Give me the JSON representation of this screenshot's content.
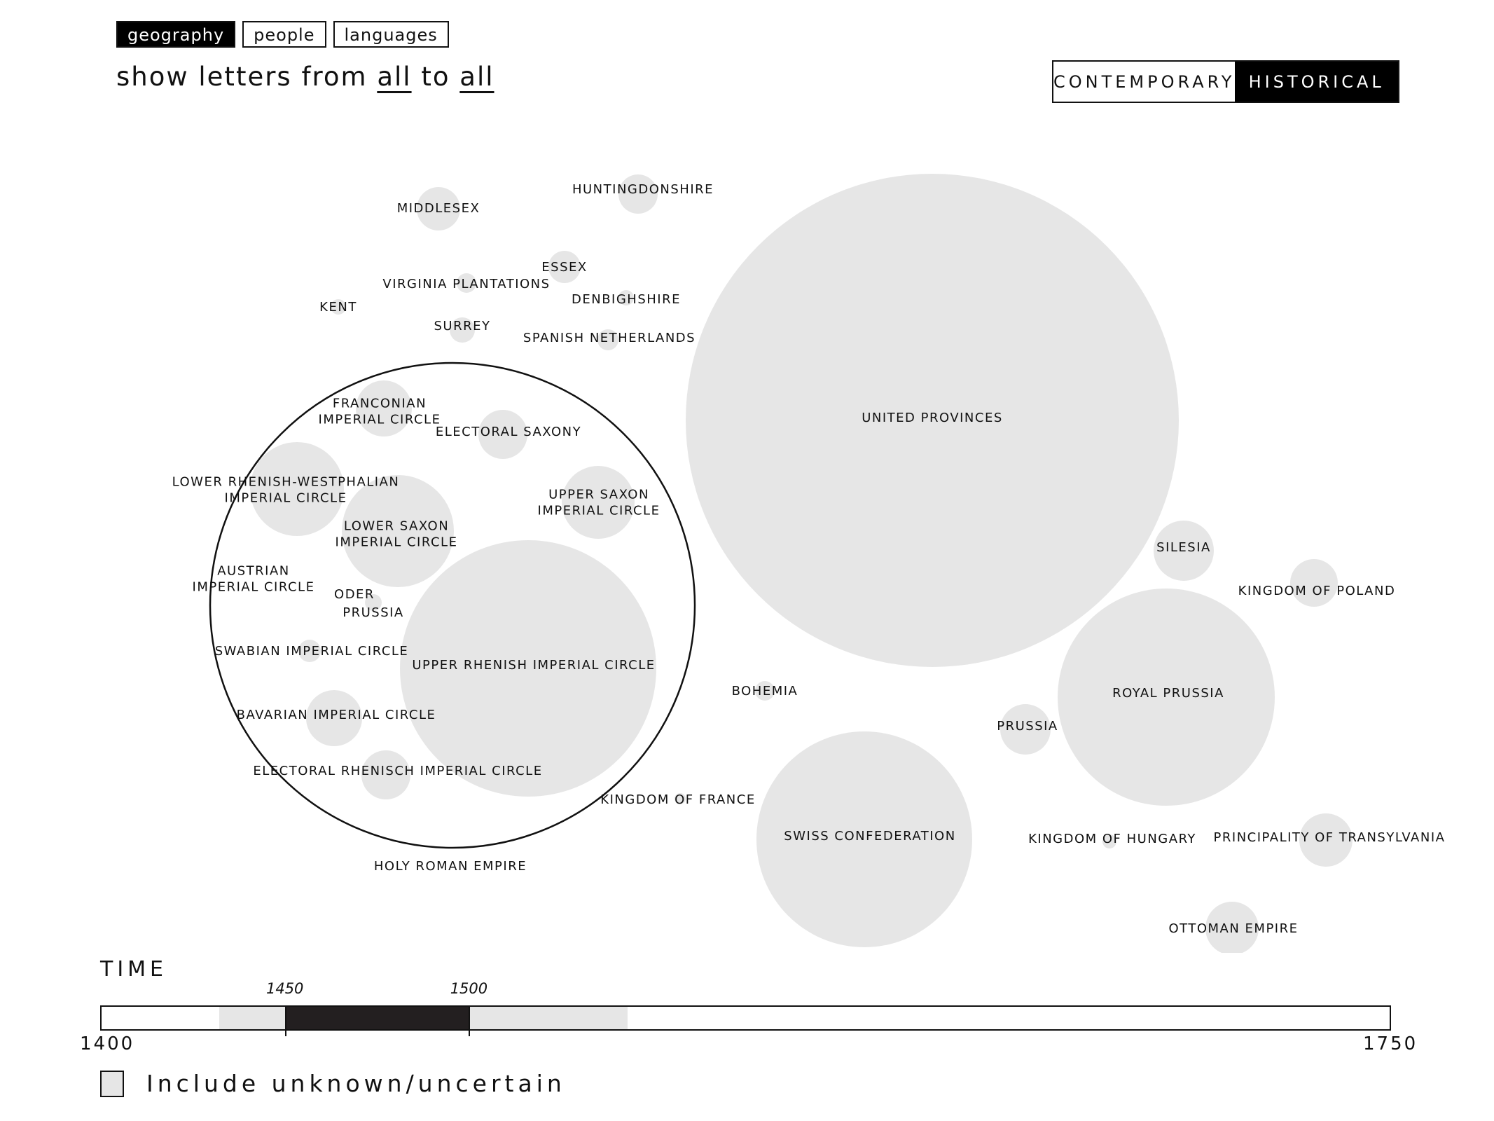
{
  "tabs": [
    {
      "label": "geography",
      "active": true
    },
    {
      "label": "people",
      "active": false
    },
    {
      "label": "languages",
      "active": false
    }
  ],
  "filter": {
    "prefix": "show letters from",
    "from_value": "all",
    "connector": "to",
    "to_value": "all"
  },
  "mode_toggle": {
    "options": [
      {
        "label": "CONTEMPORARY",
        "active": false
      },
      {
        "label": "HISTORICAL",
        "active": true
      }
    ]
  },
  "bubble_chart": {
    "bubble_color": "#e6e6e6",
    "bubbles": [
      {
        "label": "HUNTINGDONSHIRE"
      },
      {
        "label": "MIDDLESEX"
      },
      {
        "label": "ESSEX"
      },
      {
        "label": "VIRGINIA PLANTATIONS"
      },
      {
        "label": "DENBIGHSHIRE"
      },
      {
        "label": "KENT"
      },
      {
        "label": "SURREY"
      },
      {
        "label": "SPANISH NETHERLANDS"
      },
      {
        "label": "UNITED PROVINCES"
      },
      {
        "label": "SILESIA"
      },
      {
        "label": "KINGDOM OF POLAND"
      },
      {
        "label": "ROYAL PRUSSIA"
      },
      {
        "label": "PRUSSIA"
      },
      {
        "label": "BOHEMIA"
      },
      {
        "label": "KINGDOM OF FRANCE"
      },
      {
        "label": "SWISS CONFEDERATION"
      },
      {
        "label": "KINGDOM OF HUNGARY"
      },
      {
        "label": "PRINCIPALITY OF TRANSYLVANIA"
      },
      {
        "label": "OTTOMAN EMPIRE"
      }
    ],
    "group": {
      "label": "HOLY ROMAN EMPIRE",
      "members": [
        {
          "label": "FRANCONIAN\nIMPERIAL CIRCLE"
        },
        {
          "label": "ELECTORAL SAXONY"
        },
        {
          "label": "LOWER RHENISH-WESTPHALIAN\nIMPERIAL CIRCLE"
        },
        {
          "label": "UPPER SAXON\nIMPERIAL CIRCLE"
        },
        {
          "label": "LOWER SAXON\nIMPERIAL CIRCLE"
        },
        {
          "label": "AUSTRIAN\nIMPERIAL CIRCLE"
        },
        {
          "label": "ODER"
        },
        {
          "label": "PRUSSIA"
        },
        {
          "label": "SWABIAN IMPERIAL CIRCLE"
        },
        {
          "label": "UPPER RHENISH IMPERIAL CIRCLE"
        },
        {
          "label": "BAVARIAN IMPERIAL CIRCLE"
        },
        {
          "label": "ELECTORAL RHENISCH IMPERIAL CIRCLE"
        }
      ]
    }
  },
  "time": {
    "title": "TIME",
    "axis_min": 1400,
    "axis_max": 1750,
    "axis_min_label": "1400",
    "axis_max_label": "1750",
    "data_range_start": 1432,
    "data_range_end": 1543,
    "selected_start": 1450,
    "selected_end": 1500,
    "selected_start_label": "1450",
    "selected_end_label": "1500"
  },
  "include_unknown": {
    "label": "Include unknown/uncertain",
    "checked": false
  }
}
